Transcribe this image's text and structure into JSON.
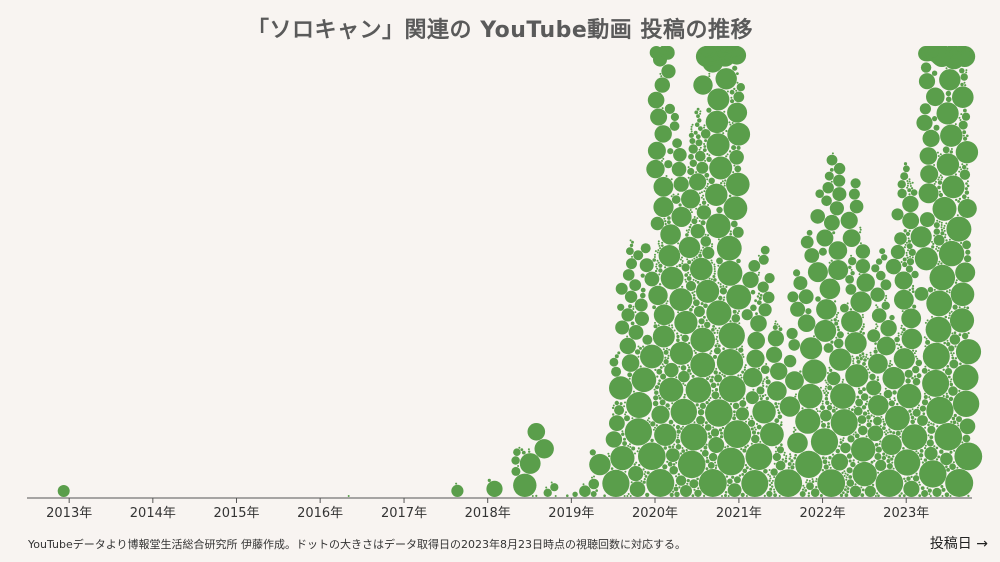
{
  "chart_data": {
    "type": "scatter",
    "subtype": "beeswarm-bubble",
    "title": "「ソロキャン」関連の YouTube動画 投稿の推移",
    "xlabel": "投稿日 →",
    "ylabel": "",
    "x_ticks": [
      "2013年",
      "2014年",
      "2015年",
      "2016年",
      "2017年",
      "2018年",
      "2019年",
      "2020年",
      "2021年",
      "2022年",
      "2023年"
    ],
    "x_range": [
      "2012-07-01",
      "2023-10-15"
    ],
    "note": "YouTubeデータより博報堂生活総合研究所 伊藤作成。ドットの大きさはデータ取得日の2023年8月23日時点の視聴回数に対応する。",
    "dot_color": "#5a9e4b",
    "grid": false,
    "legend": "none",
    "approx_post_counts": [
      {
        "period": "2012-Q4",
        "count": 1
      },
      {
        "period": "2016-H1",
        "count": 1
      },
      {
        "period": "2017-H2",
        "count": 2
      },
      {
        "period": "2018-Q1",
        "count": 2
      },
      {
        "period": "2018-Q2",
        "count": 9
      },
      {
        "period": "2018-H2",
        "count": 12
      },
      {
        "period": "2019-H1",
        "count": 14
      },
      {
        "period": "2019-H2",
        "count": 110
      },
      {
        "period": "2020-H1",
        "count": 240
      },
      {
        "period": "2020-H2",
        "count": 330
      },
      {
        "period": "2021-H1",
        "count": 130
      },
      {
        "period": "2021-H2",
        "count": 80
      },
      {
        "period": "2022-H1",
        "count": 180
      },
      {
        "period": "2022-H2",
        "count": 150
      },
      {
        "period": "2023-H1",
        "count": 230
      },
      {
        "period": "2023-Q3",
        "count": 160
      }
    ]
  }
}
